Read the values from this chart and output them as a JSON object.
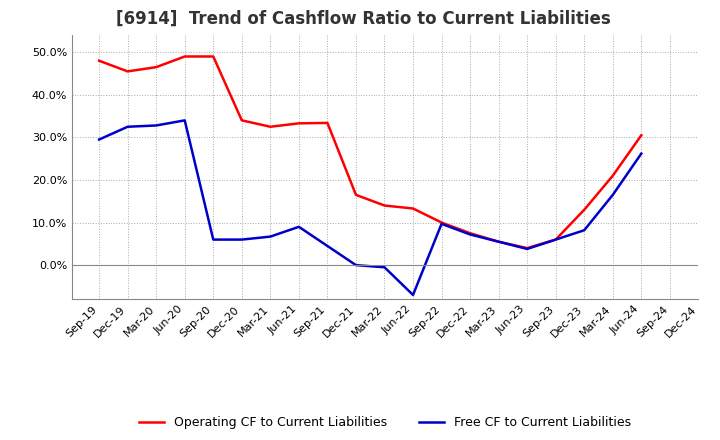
{
  "title": "[6914]  Trend of Cashflow Ratio to Current Liabilities",
  "x_labels": [
    "Sep-19",
    "Dec-19",
    "Mar-20",
    "Jun-20",
    "Sep-20",
    "Dec-20",
    "Mar-21",
    "Jun-21",
    "Sep-21",
    "Dec-21",
    "Mar-22",
    "Jun-22",
    "Sep-22",
    "Dec-22",
    "Mar-23",
    "Jun-23",
    "Sep-23",
    "Dec-23",
    "Mar-24",
    "Jun-24",
    "Sep-24",
    "Dec-24"
  ],
  "operating_cf": [
    0.48,
    0.455,
    0.465,
    0.49,
    0.49,
    0.34,
    0.325,
    0.333,
    0.334,
    0.165,
    0.14,
    0.133,
    0.1,
    0.075,
    0.055,
    0.04,
    0.06,
    0.13,
    0.21,
    0.305,
    null,
    null
  ],
  "free_cf": [
    0.295,
    0.325,
    0.328,
    0.34,
    0.06,
    0.06,
    0.067,
    0.09,
    0.045,
    0.0,
    -0.005,
    -0.07,
    0.097,
    0.072,
    0.055,
    0.038,
    0.06,
    0.082,
    0.165,
    0.262,
    null,
    null
  ],
  "operating_color": "#ff0000",
  "free_color": "#0000cc",
  "background_color": "#ffffff",
  "plot_bg_color": "#ffffff",
  "grid_color": "#aaaaaa",
  "ylim": [
    -0.08,
    0.54
  ],
  "yticks": [
    0.0,
    0.1,
    0.2,
    0.3,
    0.4,
    0.5
  ],
  "ytick_labels": [
    "0.0%",
    "10.0%",
    "20.0%",
    "30.0%",
    "40.0%",
    "50.0%"
  ],
  "legend_operating": "Operating CF to Current Liabilities",
  "legend_free": "Free CF to Current Liabilities",
  "title_fontsize": 12,
  "label_fontsize": 9,
  "tick_fontsize": 8,
  "line_width": 1.8
}
